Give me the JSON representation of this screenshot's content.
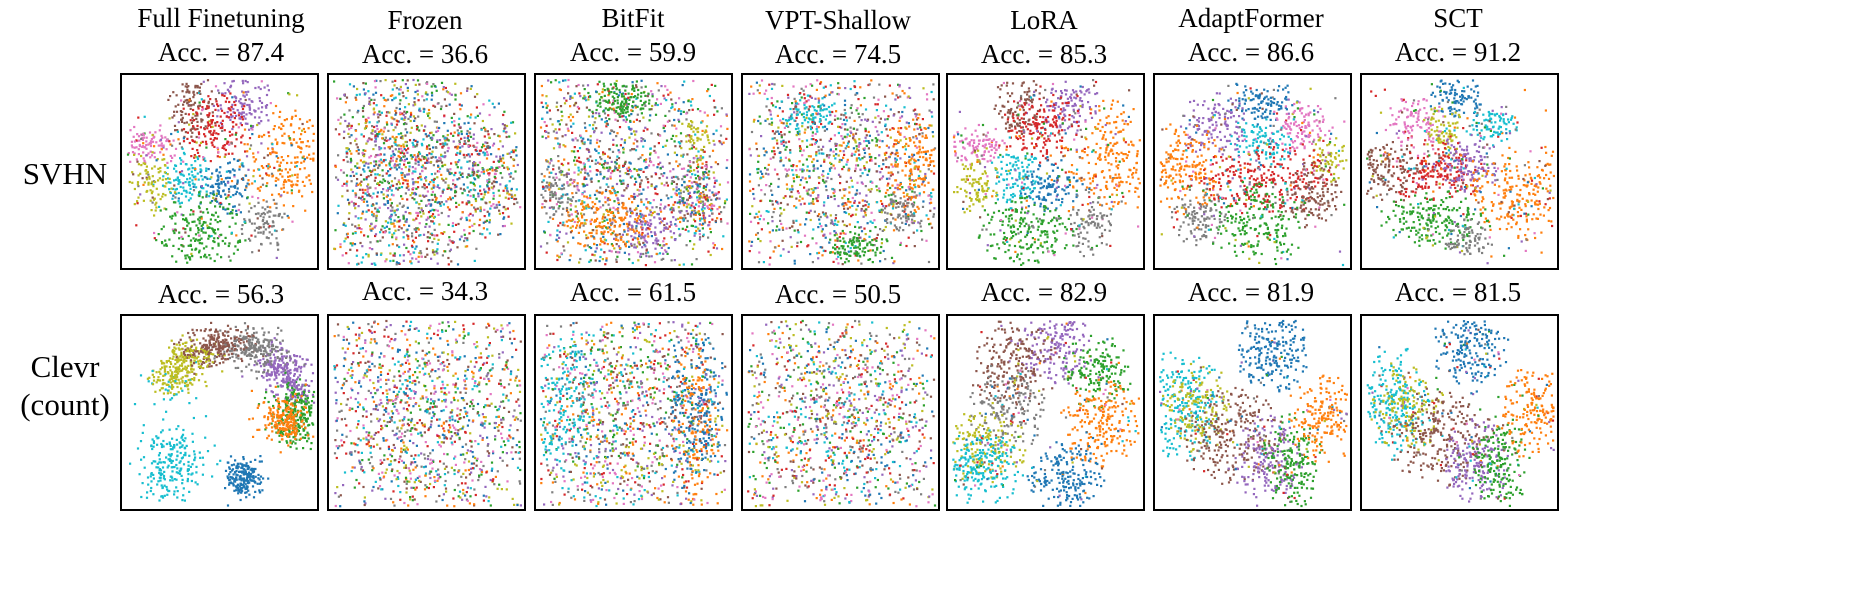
{
  "figure": {
    "methods": [
      "Full Finetuning",
      "Frozen",
      "BitFit",
      "VPT-Shallow",
      "LoRA",
      "AdaptFormer",
      "SCT"
    ],
    "row_labels": [
      [
        "SVHN"
      ],
      [
        "Clevr",
        "(count)"
      ]
    ]
  },
  "colors": [
    "#1f77b4",
    "#ff7f0e",
    "#2ca02c",
    "#d62728",
    "#9467bd",
    "#8c564b",
    "#e377c2",
    "#7f7f7f",
    "#bcbd22",
    "#17becf"
  ],
  "chart_data": [
    {
      "type": "scatter",
      "dataset": "SVHN",
      "method": "Full Finetuning",
      "accuracy_label": "Acc. = 87.4",
      "accuracy": 87.4
    },
    {
      "type": "scatter",
      "dataset": "SVHN",
      "method": "Frozen",
      "accuracy_label": "Acc. = 36.6",
      "accuracy": 36.6
    },
    {
      "type": "scatter",
      "dataset": "SVHN",
      "method": "BitFit",
      "accuracy_label": "Acc. = 59.9",
      "accuracy": 59.9
    },
    {
      "type": "scatter",
      "dataset": "SVHN",
      "method": "VPT-Shallow",
      "accuracy_label": "Acc. = 74.5",
      "accuracy": 74.5
    },
    {
      "type": "scatter",
      "dataset": "SVHN",
      "method": "LoRA",
      "accuracy_label": "Acc. = 85.3",
      "accuracy": 85.3
    },
    {
      "type": "scatter",
      "dataset": "SVHN",
      "method": "AdaptFormer",
      "accuracy_label": "Acc. = 86.6",
      "accuracy": 86.6
    },
    {
      "type": "scatter",
      "dataset": "SVHN",
      "method": "SCT",
      "accuracy_label": "Acc. = 91.2",
      "accuracy": 91.2
    },
    {
      "type": "scatter",
      "dataset": "Clevr (count)",
      "method": "Full Finetuning",
      "accuracy_label": "Acc. = 56.3",
      "accuracy": 56.3
    },
    {
      "type": "scatter",
      "dataset": "Clevr (count)",
      "method": "Frozen",
      "accuracy_label": "Acc. = 34.3",
      "accuracy": 34.3
    },
    {
      "type": "scatter",
      "dataset": "Clevr (count)",
      "method": "BitFit",
      "accuracy_label": "Acc. = 61.5",
      "accuracy": 61.5
    },
    {
      "type": "scatter",
      "dataset": "Clevr (count)",
      "method": "VPT-Shallow",
      "accuracy_label": "Acc. = 50.5",
      "accuracy": 50.5
    },
    {
      "type": "scatter",
      "dataset": "Clevr (count)",
      "method": "LoRA",
      "accuracy_label": "Acc. = 82.9",
      "accuracy": 82.9
    },
    {
      "type": "scatter",
      "dataset": "Clevr (count)",
      "method": "AdaptFormer",
      "accuracy_label": "Acc. = 81.9",
      "accuracy": 81.9
    },
    {
      "type": "scatter",
      "dataset": "Clevr (count)",
      "method": "SCT",
      "accuracy_label": "Acc. = 81.5",
      "accuracy": 81.5
    }
  ]
}
